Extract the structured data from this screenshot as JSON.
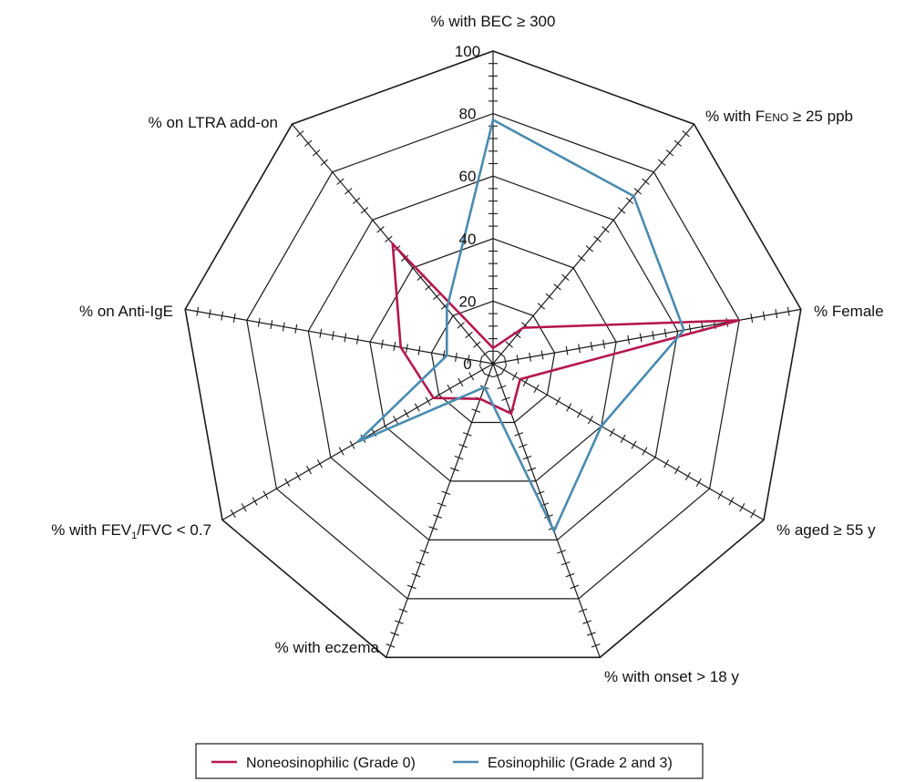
{
  "chart_data": {
    "type": "radar",
    "rmax": 100,
    "ticks": [
      0,
      20,
      40,
      60,
      80,
      100
    ],
    "axes": [
      {
        "id": "bec",
        "label": "% with BEC ≥ 300"
      },
      {
        "id": "feno",
        "label": "% with FENO ≥ 25 ppb"
      },
      {
        "id": "female",
        "label": "% Female"
      },
      {
        "id": "aged",
        "label": "% aged ≥ 55 y"
      },
      {
        "id": "onset",
        "label": "% with onset > 18 y"
      },
      {
        "id": "eczema",
        "label": "% with eczema"
      },
      {
        "id": "fev",
        "label": "% with FEV1/FVC < 0.7"
      },
      {
        "id": "antiige",
        "label": "% on Anti-IgE"
      },
      {
        "id": "ltra",
        "label": "% on LTRA add-on"
      }
    ],
    "series": [
      {
        "name": "Noneosinophilic (Grade 0)",
        "color": "#b5174f",
        "values": [
          5,
          15,
          80,
          10,
          17,
          12,
          22,
          30,
          50
        ]
      },
      {
        "name": "Eosinophilic (Grade 2 and 3)",
        "color": "#4a8bb0",
        "values": [
          78,
          70,
          62,
          40,
          57,
          8,
          50,
          15,
          23
        ]
      }
    ],
    "legend_position": "bottom"
  }
}
